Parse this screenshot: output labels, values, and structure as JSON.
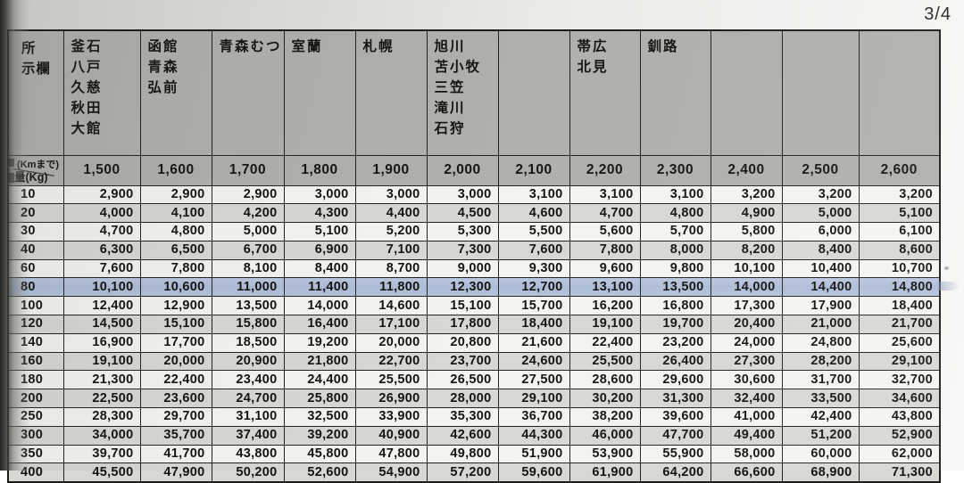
{
  "page": {
    "indicator": "3/4"
  },
  "table": {
    "corner": {
      "station_lines": [
        "所",
        "示欄"
      ],
      "distance_unit_label": "(Kmまで)",
      "weight_unit_label": "量(Kg)"
    },
    "columns": [
      {
        "km": "1,500",
        "cities": [
          "釜石",
          "八戸",
          "久慈",
          "秋田",
          "大館"
        ]
      },
      {
        "km": "1,600",
        "cities": [
          "函館",
          "青森",
          "弘前"
        ]
      },
      {
        "km": "1,700",
        "cities": [
          "青森むつ"
        ]
      },
      {
        "km": "1,800",
        "cities": [
          "室蘭"
        ]
      },
      {
        "km": "1,900",
        "cities": [
          "札幌"
        ]
      },
      {
        "km": "2,000",
        "cities": [
          "旭川",
          "苫小牧",
          "三笠",
          "滝川",
          "石狩"
        ]
      },
      {
        "km": "2,100",
        "cities": []
      },
      {
        "km": "2,200",
        "cities": [
          "帯広",
          "北見"
        ]
      },
      {
        "km": "2,300",
        "cities": [
          "釧路"
        ]
      },
      {
        "km": "2,400",
        "cities": []
      },
      {
        "km": "2,500",
        "cities": []
      },
      {
        "km": "2,600",
        "cities": []
      }
    ],
    "rows": [
      {
        "kg": "10",
        "highlight": false,
        "values": [
          "2,900",
          "2,900",
          "2,900",
          "3,000",
          "3,000",
          "3,000",
          "3,100",
          "3,100",
          "3,100",
          "3,200",
          "3,200",
          "3,200"
        ]
      },
      {
        "kg": "20",
        "highlight": false,
        "values": [
          "4,000",
          "4,100",
          "4,200",
          "4,300",
          "4,400",
          "4,500",
          "4,600",
          "4,700",
          "4,800",
          "4,900",
          "5,000",
          "5,100"
        ]
      },
      {
        "kg": "30",
        "highlight": false,
        "values": [
          "4,700",
          "4,800",
          "5,000",
          "5,100",
          "5,200",
          "5,300",
          "5,500",
          "5,600",
          "5,700",
          "5,800",
          "6,000",
          "6,100"
        ]
      },
      {
        "kg": "40",
        "highlight": false,
        "values": [
          "6,300",
          "6,500",
          "6,700",
          "6,900",
          "7,100",
          "7,300",
          "7,600",
          "7,800",
          "8,000",
          "8,200",
          "8,400",
          "8,600"
        ]
      },
      {
        "kg": "60",
        "highlight": false,
        "values": [
          "7,600",
          "7,800",
          "8,100",
          "8,400",
          "8,700",
          "9,000",
          "9,300",
          "9,600",
          "9,800",
          "10,100",
          "10,400",
          "10,700"
        ]
      },
      {
        "kg": "80",
        "highlight": true,
        "values": [
          "10,100",
          "10,600",
          "11,000",
          "11,400",
          "11,800",
          "12,300",
          "12,700",
          "13,100",
          "13,500",
          "14,000",
          "14,400",
          "14,800"
        ]
      },
      {
        "kg": "100",
        "highlight": false,
        "values": [
          "12,400",
          "12,900",
          "13,500",
          "14,000",
          "14,600",
          "15,100",
          "15,700",
          "16,200",
          "16,800",
          "17,300",
          "17,900",
          "18,400"
        ]
      },
      {
        "kg": "120",
        "highlight": false,
        "values": [
          "14,500",
          "15,100",
          "15,800",
          "16,400",
          "17,100",
          "17,800",
          "18,400",
          "19,100",
          "19,700",
          "20,400",
          "21,000",
          "21,700"
        ]
      },
      {
        "kg": "140",
        "highlight": false,
        "values": [
          "16,900",
          "17,700",
          "18,500",
          "19,200",
          "20,000",
          "20,800",
          "21,600",
          "22,400",
          "23,200",
          "24,000",
          "24,800",
          "25,600"
        ]
      },
      {
        "kg": "160",
        "highlight": false,
        "values": [
          "19,100",
          "20,000",
          "20,900",
          "21,800",
          "22,700",
          "23,700",
          "24,600",
          "25,500",
          "26,400",
          "27,300",
          "28,200",
          "29,100"
        ]
      },
      {
        "kg": "180",
        "highlight": false,
        "values": [
          "21,300",
          "22,400",
          "23,400",
          "24,400",
          "25,500",
          "26,500",
          "27,500",
          "28,600",
          "29,600",
          "30,600",
          "31,700",
          "32,700"
        ]
      },
      {
        "kg": "200",
        "highlight": false,
        "values": [
          "22,500",
          "23,600",
          "24,700",
          "25,800",
          "26,900",
          "28,000",
          "29,100",
          "30,200",
          "31,300",
          "32,400",
          "33,500",
          "34,600"
        ]
      },
      {
        "kg": "250",
        "highlight": false,
        "values": [
          "28,300",
          "29,700",
          "31,100",
          "32,500",
          "33,900",
          "35,300",
          "36,700",
          "38,200",
          "39,600",
          "41,000",
          "42,400",
          "43,800"
        ]
      },
      {
        "kg": "300",
        "highlight": false,
        "values": [
          "34,000",
          "35,700",
          "37,400",
          "39,200",
          "40,900",
          "42,600",
          "44,300",
          "46,000",
          "47,700",
          "49,400",
          "51,200",
          "52,900"
        ]
      },
      {
        "kg": "350",
        "highlight": false,
        "values": [
          "39,700",
          "41,700",
          "43,800",
          "45,800",
          "47,800",
          "49,800",
          "51,900",
          "53,900",
          "55,900",
          "58,000",
          "60,000",
          "62,000"
        ]
      },
      {
        "kg": "400",
        "highlight": false,
        "values": [
          "45,500",
          "47,900",
          "50,200",
          "52,600",
          "54,900",
          "57,200",
          "59,600",
          "61,900",
          "64,200",
          "66,600",
          "68,900",
          "71,300"
        ]
      }
    ]
  },
  "colors": {
    "highlight": "#adbcd8",
    "header_bg": "#b0afab",
    "row_alt": "#d8d7d1",
    "row_white": "#f4f3ef",
    "border": "#222220"
  }
}
